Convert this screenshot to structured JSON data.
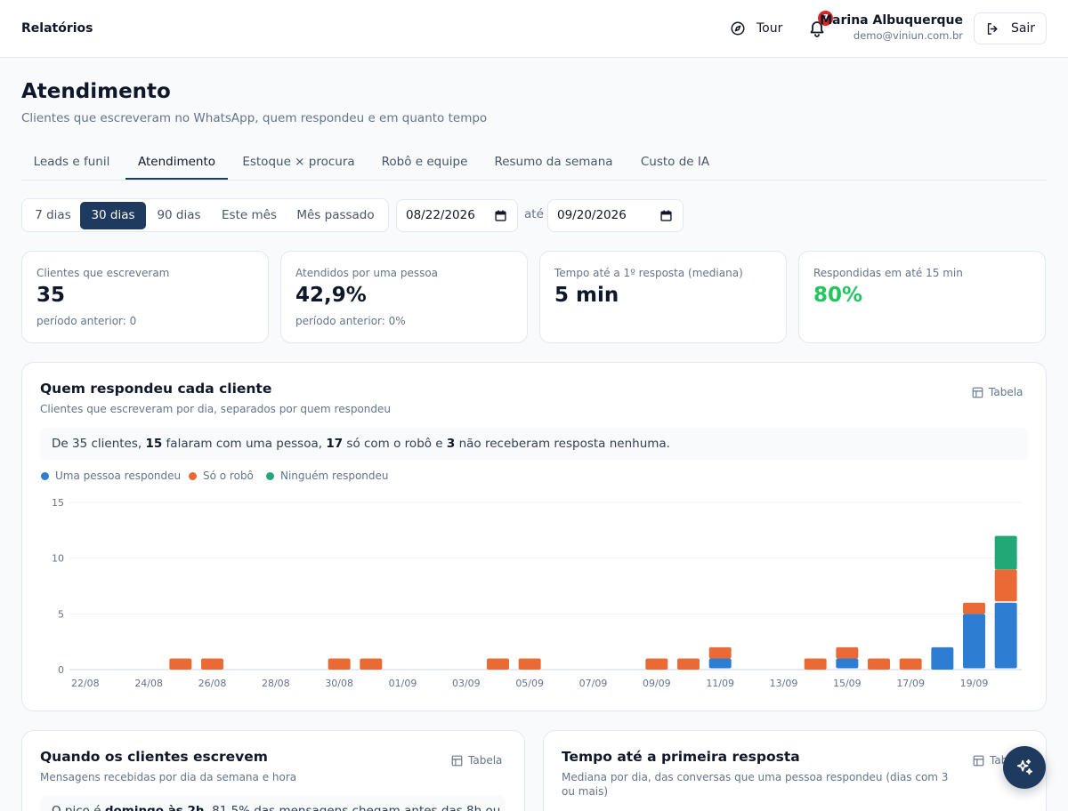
{
  "topbar": {
    "brand": "Relatórios",
    "tour_label": "Tour",
    "notifications_count": "7",
    "user_name": "Marina Albuquerque",
    "user_email": "demo@viniun.com.br",
    "logout_label": "Sair"
  },
  "page": {
    "title": "Atendimento",
    "subtitle": "Clientes que escreveram no WhatsApp, quem respondeu e em quanto tempo"
  },
  "tabs": [
    {
      "label": "Leads e funil"
    },
    {
      "label": "Atendimento",
      "active": true
    },
    {
      "label": "Estoque × procura"
    },
    {
      "label": "Robô e equipe"
    },
    {
      "label": "Resumo da semana"
    },
    {
      "label": "Custo de IA"
    }
  ],
  "filters": {
    "ranges": [
      {
        "label": "7 dias"
      },
      {
        "label": "30 dias",
        "active": true
      },
      {
        "label": "90 dias"
      },
      {
        "label": "Este mês"
      },
      {
        "label": "Mês passado"
      }
    ],
    "date_from": "08/22/2026",
    "until_label": "até",
    "date_to": "09/20/2026"
  },
  "kpis": [
    {
      "label": "Clientes que escreveram",
      "value": "35",
      "previous": "período anterior: 0"
    },
    {
      "label": "Atendidos por uma pessoa",
      "value": "42,9%",
      "previous": "período anterior: 0%"
    },
    {
      "label": "Tempo até a 1º resposta (mediana)",
      "value": "5 min",
      "previous": ""
    },
    {
      "label": "Respondidas em até 15 min",
      "value": "80%",
      "previous": "",
      "value_color": "#22c55e"
    }
  ],
  "chart_card": {
    "title": "Quem respondeu cada cliente",
    "subtitle": "Clientes que escreveram por dia, separados por quem respondeu",
    "table_label": "Tabela",
    "summary": {
      "p1": "De 35 clientes, ",
      "b1": "15",
      "p2": " falaram com uma pessoa, ",
      "b2": "17",
      "p3": " só com o robô e ",
      "b3": "3",
      "p4": " não receberam resposta nenhuma."
    }
  },
  "chart_data": {
    "type": "bar",
    "stacked": true,
    "categories": [
      "22/08",
      "23/08",
      "24/08",
      "25/08",
      "26/08",
      "27/08",
      "28/08",
      "29/08",
      "30/08",
      "31/08",
      "01/09",
      "02/09",
      "03/09",
      "04/09",
      "05/09",
      "06/09",
      "07/09",
      "08/09",
      "09/09",
      "10/09",
      "11/09",
      "12/09",
      "13/09",
      "14/09",
      "15/09",
      "16/09",
      "17/09",
      "18/09",
      "19/09",
      "20/09"
    ],
    "tick_labels": [
      "22/08",
      "24/08",
      "26/08",
      "28/08",
      "30/08",
      "01/09",
      "03/09",
      "05/09",
      "07/09",
      "09/09",
      "11/09",
      "13/09",
      "15/09",
      "17/09",
      "19/09"
    ],
    "series": [
      {
        "name": "Uma pessoa respondeu",
        "color": "#2d7dd2",
        "values": [
          0,
          0,
          0,
          0,
          0,
          0,
          0,
          0,
          0,
          0,
          0,
          0,
          0,
          0,
          0,
          0,
          0,
          0,
          0,
          0,
          1,
          0,
          0,
          0,
          1,
          0,
          0,
          2,
          5,
          6
        ]
      },
      {
        "name": "Só o robô",
        "color": "#ea6a35",
        "values": [
          0,
          0,
          0,
          1,
          1,
          0,
          0,
          0,
          1,
          1,
          0,
          0,
          0,
          1,
          1,
          0,
          0,
          0,
          1,
          1,
          1,
          0,
          0,
          1,
          1,
          1,
          1,
          0,
          1,
          3
        ]
      },
      {
        "name": "Ninguém respondeu",
        "color": "#22a776",
        "values": [
          0,
          0,
          0,
          0,
          0,
          0,
          0,
          0,
          0,
          0,
          0,
          0,
          0,
          0,
          0,
          0,
          0,
          0,
          0,
          0,
          0,
          0,
          0,
          0,
          0,
          0,
          0,
          0,
          0,
          3
        ]
      }
    ],
    "yticks": [
      0,
      5,
      10,
      15
    ],
    "ylim": [
      0,
      15
    ],
    "grid": true,
    "legend_position": "top-left"
  },
  "card2": {
    "title": "Quando os clientes escrevem",
    "subtitle": "Mensagens recebidas por dia da semana e hora",
    "table_label": "Tabela",
    "summary_p1": "O pico é ",
    "summary_b1": "domingo às 2h",
    "summary_p2": ". 81,5% das mensagens chegam antes das 8h ou"
  },
  "card3": {
    "title": "Tempo até a primeira resposta",
    "subtitle": "Mediana por dia, das conversas que uma pessoa respondeu (dias com 3 ou mais)",
    "table_label": "Tabela"
  }
}
